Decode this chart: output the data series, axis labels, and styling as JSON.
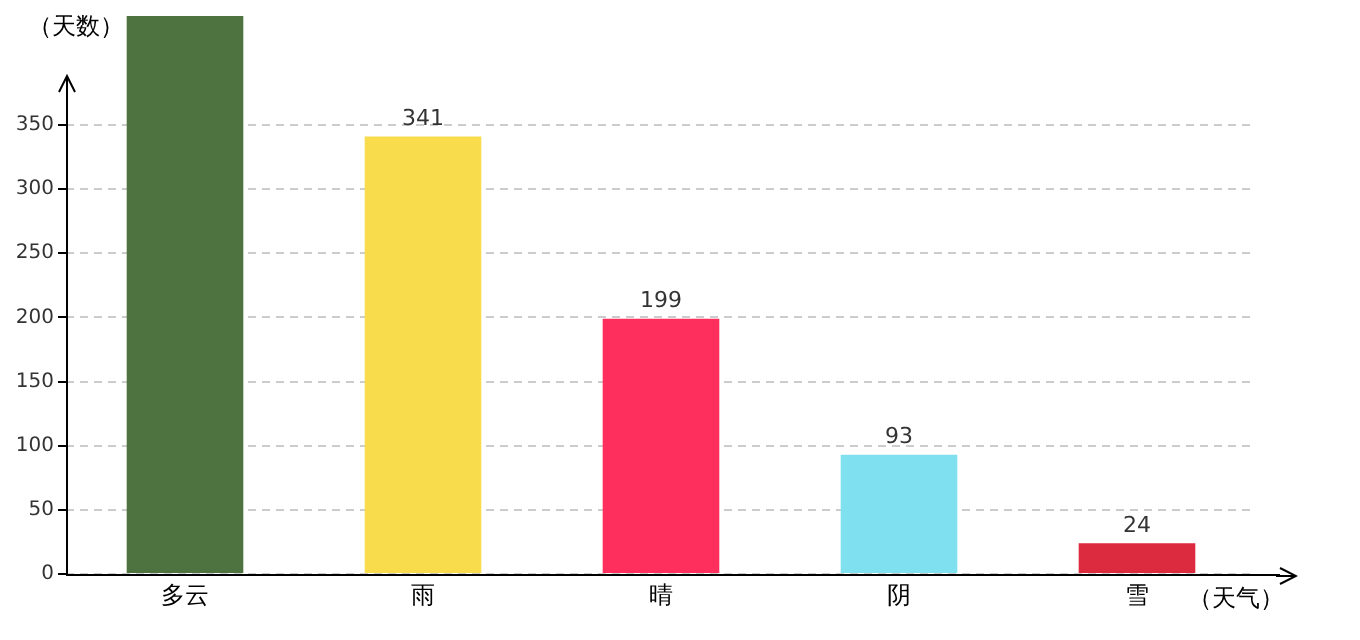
{
  "chart_data": {
    "type": "bar",
    "xlabel": "（天气）",
    "ylabel": "（天数）",
    "categories": [
      "多云",
      "雨",
      "晴",
      "阴",
      "雪"
    ],
    "values": [
      435,
      341,
      199,
      93,
      24
    ],
    "value_labels": [
      null,
      "341",
      "199",
      "93",
      "24"
    ],
    "colors": [
      "#4e7340",
      "#f8dc4b",
      "#fe2e5d",
      "#7fe0f0",
      "#dc2a3f"
    ],
    "ylim": [
      0,
      435
    ],
    "yticks": [
      0,
      50,
      100,
      150,
      200,
      250,
      300,
      350
    ],
    "grid": "y",
    "legend": false
  }
}
